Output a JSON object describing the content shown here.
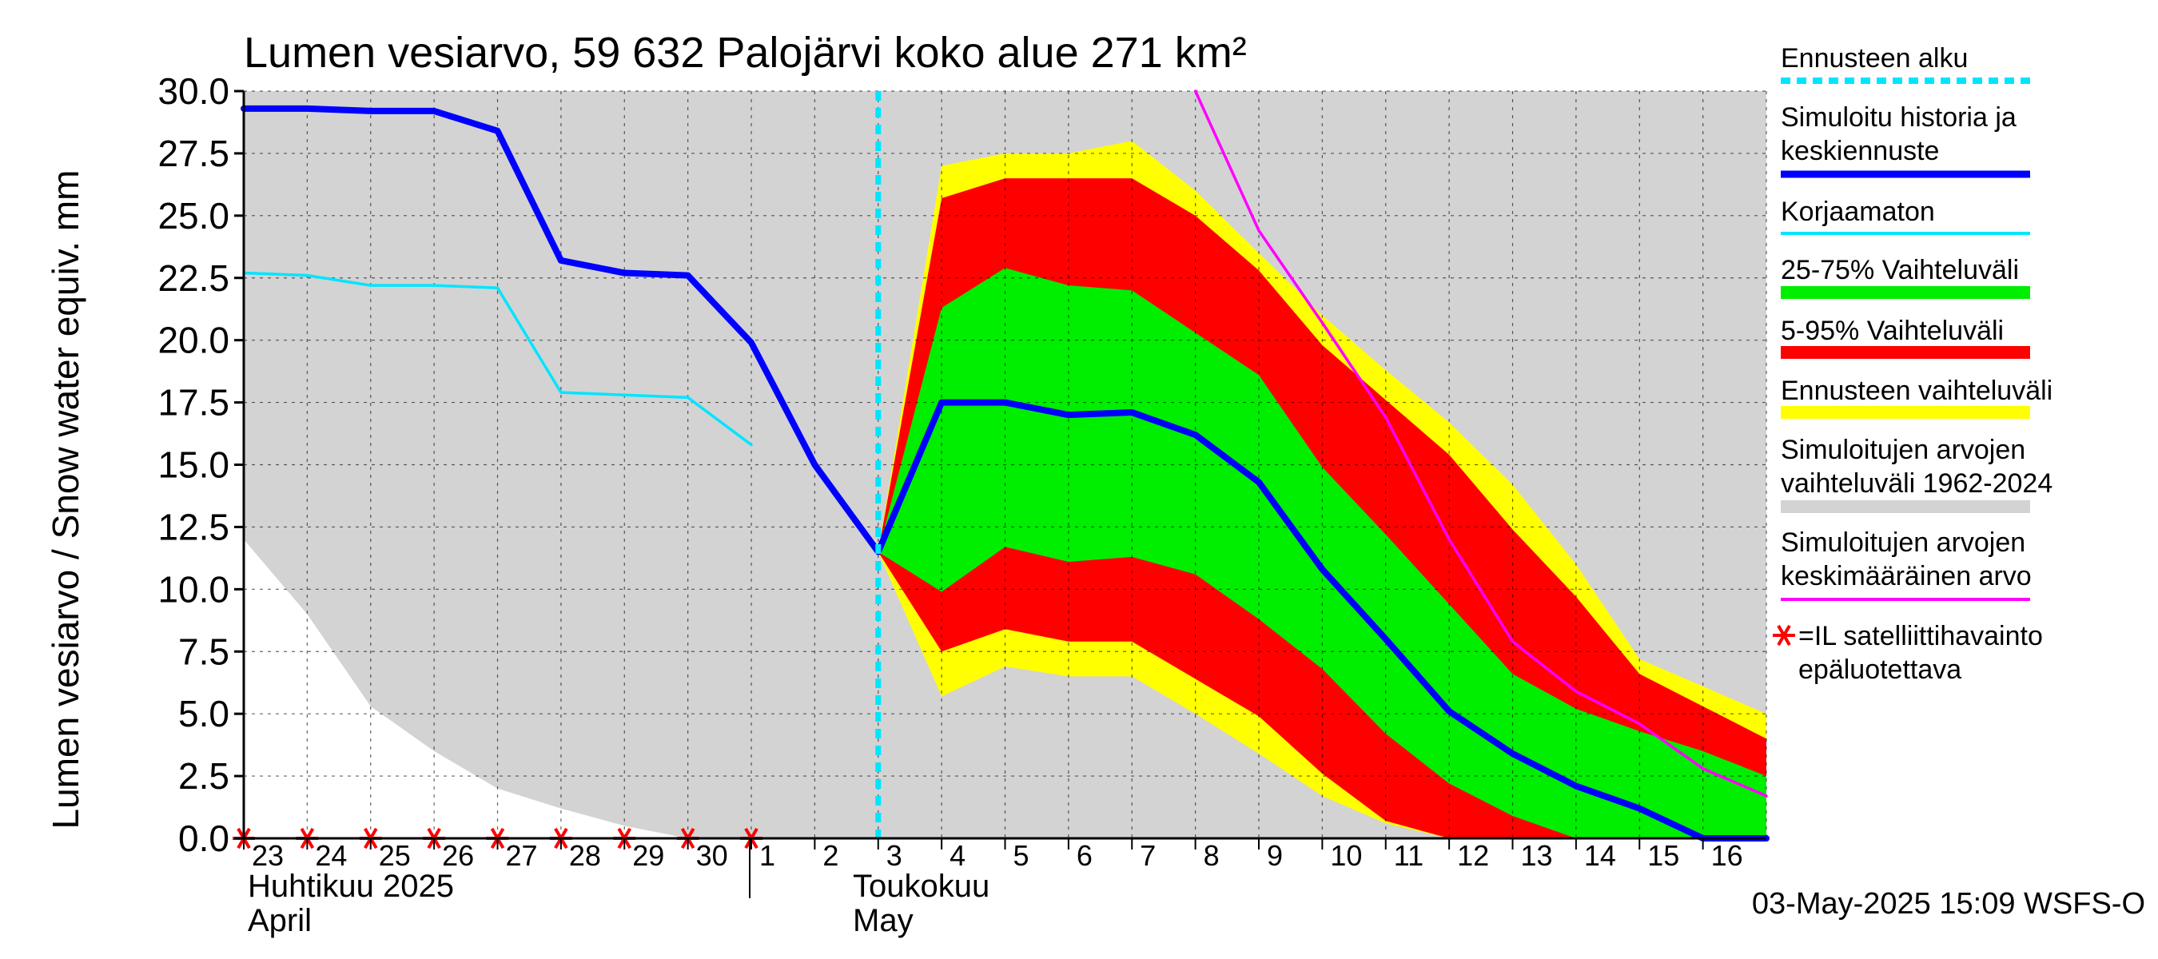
{
  "chart_data": {
    "type": "area",
    "title": "Lumen vesiarvo, 59 632 Palojärvi koko alue 271 km²",
    "ylabel": "Lumen vesiarvo / Snow water equiv.    mm",
    "ylim": [
      0,
      30
    ],
    "yticks": [
      "0.0",
      "2.5",
      "5.0",
      "7.5",
      "10.0",
      "12.5",
      "15.0",
      "17.5",
      "20.0",
      "22.5",
      "25.0",
      "27.5",
      "30.0"
    ],
    "xlim": [
      0,
      24
    ],
    "xticks": [
      {
        "x": 0,
        "label": "23"
      },
      {
        "x": 1,
        "label": "24"
      },
      {
        "x": 2,
        "label": "25"
      },
      {
        "x": 3,
        "label": "26"
      },
      {
        "x": 4,
        "label": "27"
      },
      {
        "x": 5,
        "label": "28"
      },
      {
        "x": 6,
        "label": "29"
      },
      {
        "x": 7,
        "label": "30"
      },
      {
        "x": 8,
        "label": "1"
      },
      {
        "x": 9,
        "label": "2"
      },
      {
        "x": 10,
        "label": "3"
      },
      {
        "x": 11,
        "label": "4"
      },
      {
        "x": 12,
        "label": "5"
      },
      {
        "x": 13,
        "label": "6"
      },
      {
        "x": 14,
        "label": "7"
      },
      {
        "x": 15,
        "label": "8"
      },
      {
        "x": 16,
        "label": "9"
      },
      {
        "x": 17,
        "label": "10"
      },
      {
        "x": 18,
        "label": "11"
      },
      {
        "x": 19,
        "label": "12"
      },
      {
        "x": 20,
        "label": "13"
      },
      {
        "x": 21,
        "label": "14"
      },
      {
        "x": 22,
        "label": "15"
      },
      {
        "x": 23,
        "label": "16"
      }
    ],
    "month_labels": {
      "april_fi": "Huhtikuu  2025",
      "april_en": "April",
      "may_fi": "Toukokuu",
      "may_en": "May"
    },
    "forecast_start_x": 10,
    "history_band": {
      "x": [
        0,
        1,
        2,
        3,
        4,
        5,
        6,
        7,
        24
      ],
      "lower": [
        12.0,
        9.0,
        5.3,
        3.5,
        2.0,
        1.2,
        0.5,
        0.0,
        0.0
      ]
    },
    "forecast_range": {
      "x": [
        10,
        11,
        12,
        13,
        14,
        15,
        16,
        17,
        18,
        19,
        20,
        21,
        22,
        23,
        24
      ],
      "upper": [
        11.5,
        27.0,
        27.5,
        27.5,
        28.0,
        26.0,
        23.5,
        21.0,
        18.8,
        16.7,
        14.2,
        11.0,
        7.2,
        6.1,
        5.0
      ],
      "lower": [
        11.5,
        5.7,
        6.9,
        6.5,
        6.5,
        5.0,
        3.4,
        1.7,
        0.6,
        0.0,
        0.0,
        0.0,
        0.0,
        0.0,
        0.0
      ]
    },
    "p5_95": {
      "x": [
        10,
        11,
        12,
        13,
        14,
        15,
        16,
        17,
        18,
        19,
        20,
        21,
        22,
        23,
        24
      ],
      "upper": [
        11.5,
        25.7,
        26.5,
        26.5,
        26.5,
        25.0,
        22.8,
        19.8,
        17.6,
        15.4,
        12.4,
        9.7,
        6.6,
        5.3,
        4.0
      ],
      "lower": [
        11.5,
        7.5,
        8.4,
        7.9,
        7.9,
        6.4,
        4.9,
        2.6,
        0.7,
        0.0,
        0.0,
        0.0,
        0.0,
        0.0,
        0.0
      ]
    },
    "p25_75": {
      "x": [
        10,
        11,
        12,
        13,
        14,
        15,
        16,
        17,
        18,
        19,
        20,
        21,
        22,
        23,
        24
      ],
      "upper": [
        11.5,
        21.3,
        22.9,
        22.2,
        22.0,
        20.3,
        18.6,
        14.9,
        12.2,
        9.4,
        6.6,
        5.2,
        4.3,
        3.5,
        2.5
      ],
      "lower": [
        11.5,
        9.9,
        11.7,
        11.1,
        11.3,
        10.6,
        8.8,
        6.8,
        4.2,
        2.2,
        0.9,
        0.0,
        0.0,
        0.0,
        0.0
      ]
    },
    "series": [
      {
        "name": "Simuloitu historia ja keskiennuste",
        "color": "#0000ff",
        "x": [
          0,
          1,
          2,
          3,
          4,
          5,
          6,
          7,
          8,
          9,
          10,
          11,
          12,
          13,
          14,
          15,
          16,
          17,
          18,
          19,
          20,
          21,
          22,
          23,
          24
        ],
        "values": [
          29.3,
          29.3,
          29.2,
          29.2,
          28.4,
          23.2,
          22.7,
          22.6,
          19.9,
          15.0,
          11.5,
          17.5,
          17.5,
          17.0,
          17.1,
          16.2,
          14.3,
          10.8,
          8.0,
          5.1,
          3.4,
          2.1,
          1.2,
          0.0,
          0.0
        ]
      },
      {
        "name": "Korjaamaton",
        "color": "#00e5ff",
        "x": [
          0,
          1,
          2,
          3,
          4,
          5,
          6,
          7,
          8
        ],
        "values": [
          22.7,
          22.6,
          22.2,
          22.2,
          22.1,
          17.9,
          17.8,
          17.7,
          15.8
        ]
      },
      {
        "name": "Simuloitujen arvojen keskimääräinen arvo",
        "color": "#ff00ff",
        "x": [
          15,
          16,
          17,
          18,
          19,
          20,
          21,
          22,
          23,
          24
        ],
        "values": [
          30.0,
          24.4,
          20.7,
          16.9,
          12.0,
          7.9,
          5.9,
          4.6,
          2.8,
          1.7
        ]
      }
    ],
    "satellite_markers_x": [
      0,
      1,
      2,
      3,
      4,
      5,
      6,
      7,
      8
    ],
    "legend": [
      {
        "label": [
          "Ennusteen alku"
        ],
        "style": "dashed",
        "color": "#00e5ff"
      },
      {
        "label": [
          "Simuloitu historia ja",
          "keskiennuste"
        ],
        "style": "line-thick",
        "color": "#0000ff"
      },
      {
        "label": [
          "Korjaamaton"
        ],
        "style": "line",
        "color": "#00e5ff"
      },
      {
        "label": [
          "25-75% Vaihteluväli"
        ],
        "style": "bar",
        "color": "#00ee00"
      },
      {
        "label": [
          "5-95% Vaihteluväli"
        ],
        "style": "bar",
        "color": "#ff0000"
      },
      {
        "label": [
          "Ennusteen vaihteluväli"
        ],
        "style": "bar",
        "color": "#ffff00"
      },
      {
        "label": [
          "Simuloitujen arvojen",
          "vaihteluväli 1962-2024"
        ],
        "style": "bar",
        "color": "#d3d3d3"
      },
      {
        "label": [
          "Simuloitujen arvojen",
          "keskimääräinen arvo"
        ],
        "style": "line",
        "color": "#ff00ff"
      },
      {
        "label": [
          "=IL satelliittihavainto",
          "epäluotettava"
        ],
        "style": "star",
        "color": "#ff0000"
      }
    ],
    "legend_placement": "right",
    "grid": true
  },
  "footer_timestamp": "03-May-2025 15:09 WSFS-O"
}
